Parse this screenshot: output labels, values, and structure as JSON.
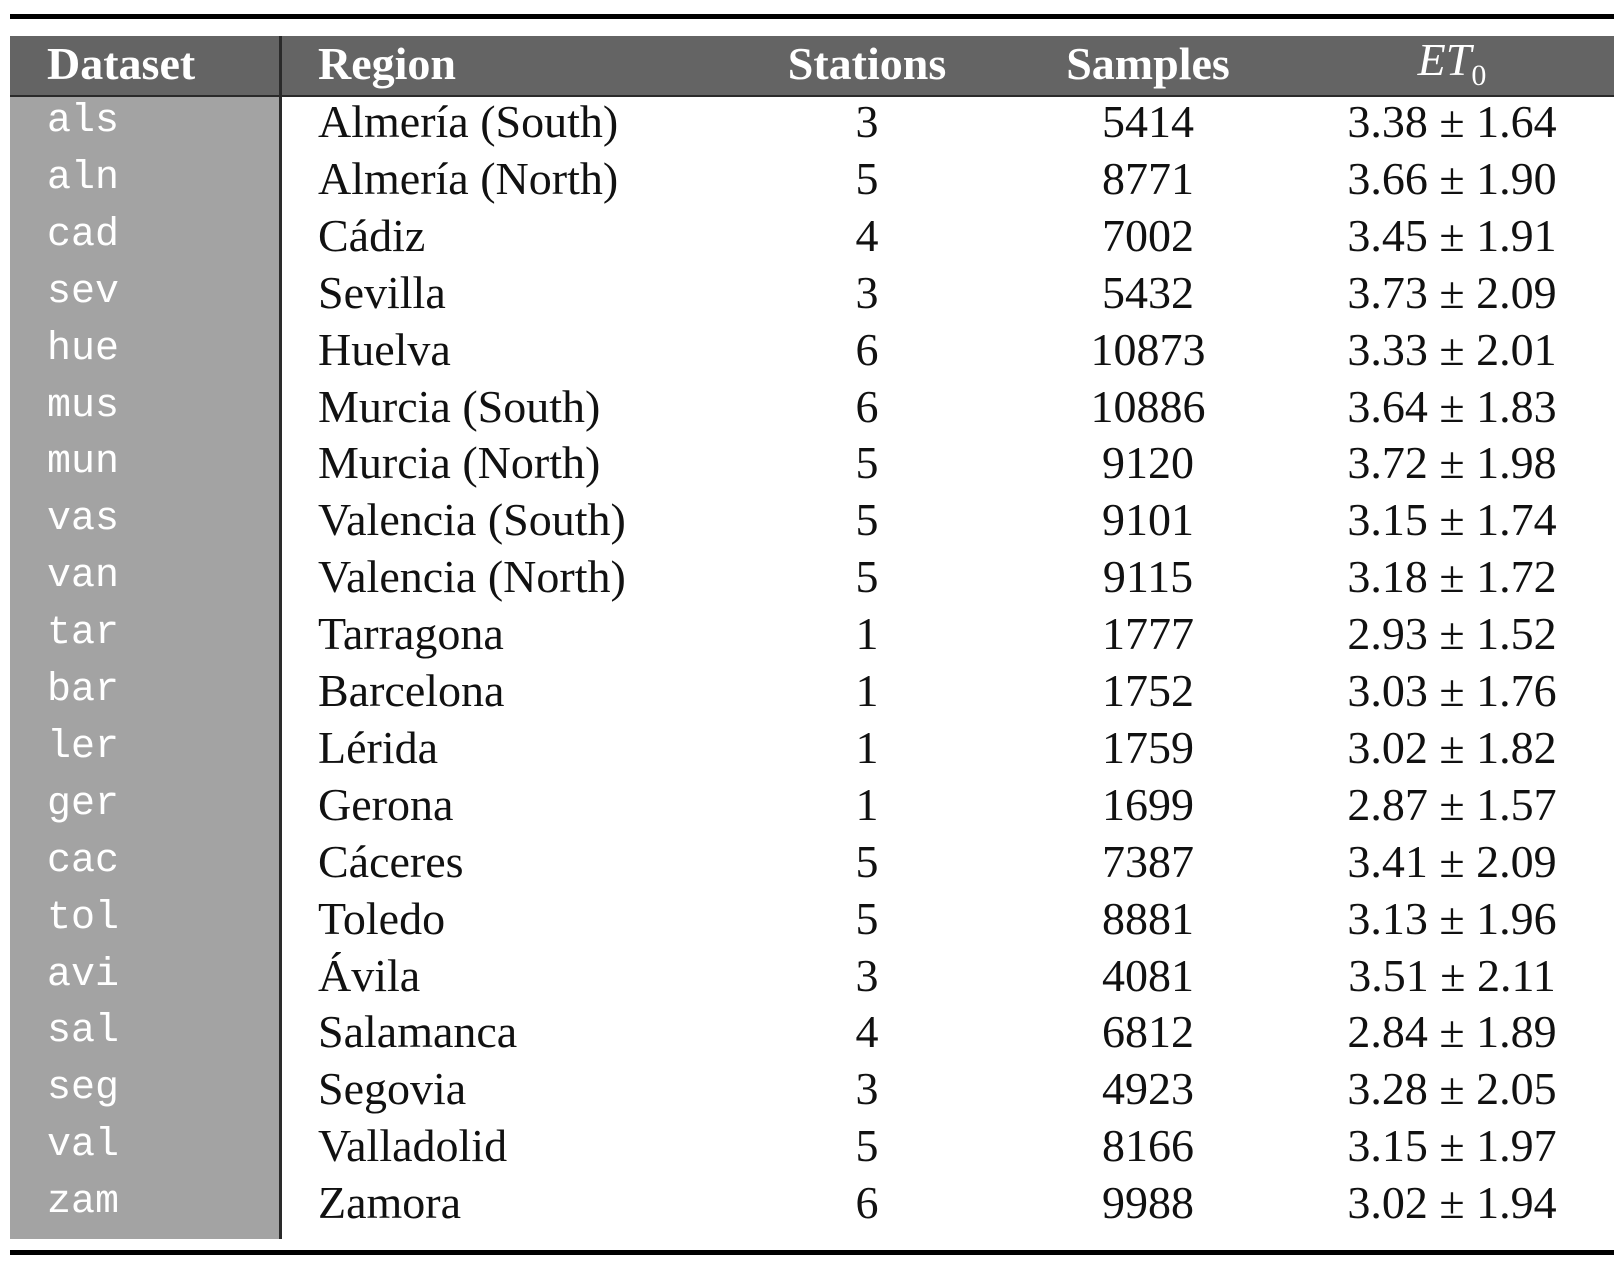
{
  "table": {
    "header": [
      "Dataset",
      "Region",
      "Stations",
      "Samples",
      {
        "base": "ET",
        "sub": "0"
      }
    ],
    "rows": [
      [
        "als",
        "Almería (South)",
        3,
        5414,
        "3.38 ± 1.64"
      ],
      [
        "aln",
        "Almería (North)",
        5,
        8771,
        "3.66 ± 1.90"
      ],
      [
        "cad",
        "Cádiz",
        4,
        7002,
        "3.45 ± 1.91"
      ],
      [
        "sev",
        "Sevilla",
        3,
        5432,
        "3.73 ± 2.09"
      ],
      [
        "hue",
        "Huelva",
        6,
        10873,
        "3.33 ± 2.01"
      ],
      [
        "mus",
        "Murcia (South)",
        6,
        10886,
        "3.64 ± 1.83"
      ],
      [
        "mun",
        "Murcia (North)",
        5,
        9120,
        "3.72 ± 1.98"
      ],
      [
        "vas",
        "Valencia (South)",
        5,
        9101,
        "3.15 ± 1.74"
      ],
      [
        "van",
        "Valencia (North)",
        5,
        9115,
        "3.18 ± 1.72"
      ],
      [
        "tar",
        "Tarragona",
        1,
        1777,
        "2.93 ± 1.52"
      ],
      [
        "bar",
        "Barcelona",
        1,
        1752,
        "3.03 ± 1.76"
      ],
      [
        "ler",
        "Lérida",
        1,
        1759,
        "3.02 ± 1.82"
      ],
      [
        "ger",
        "Gerona",
        1,
        1699,
        "2.87 ± 1.57"
      ],
      [
        "cac",
        "Cáceres",
        5,
        7387,
        "3.41 ± 2.09"
      ],
      [
        "tol",
        "Toledo",
        5,
        8881,
        "3.13 ± 1.96"
      ],
      [
        "avi",
        "Ávila",
        3,
        4081,
        "3.51 ± 2.11"
      ],
      [
        "sal",
        "Salamanca",
        4,
        6812,
        "2.84 ± 1.89"
      ],
      [
        "seg",
        "Segovia",
        3,
        4923,
        "3.28 ± 2.05"
      ],
      [
        "val",
        "Valladolid",
        5,
        8166,
        "3.15 ± 1.97"
      ],
      [
        "zam",
        "Zamora",
        6,
        9988,
        "3.02 ± 1.94"
      ]
    ]
  }
}
